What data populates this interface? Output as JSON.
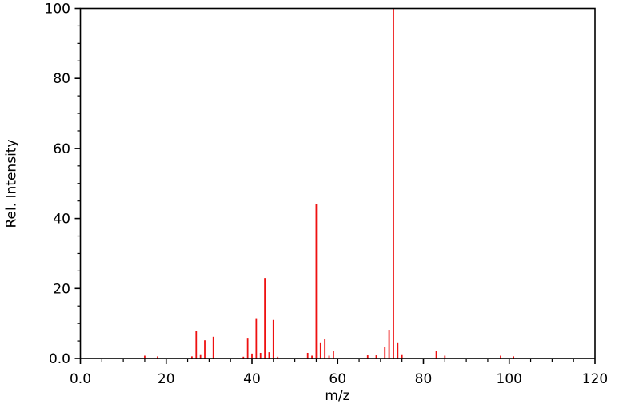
{
  "chart_data": {
    "type": "bar",
    "subtype": "mass-spectrum-stick-plot",
    "title": "",
    "xlabel": "m/z",
    "ylabel": "Rel. Intensity",
    "xlim": [
      0,
      120
    ],
    "ylim": [
      0,
      100
    ],
    "x_major_tick_values": [
      0,
      20,
      40,
      60,
      80,
      100,
      120
    ],
    "x_major_tick_labels": [
      "0.0",
      "20",
      "40",
      "60",
      "80",
      "100",
      "120"
    ],
    "y_major_tick_values": [
      0,
      20,
      40,
      60,
      80,
      100
    ],
    "y_major_tick_labels": [
      "0.0",
      "20",
      "40",
      "60",
      "80",
      "100"
    ],
    "minor_tick_step_x": 5,
    "minor_tick_step_y": 5,
    "grid": false,
    "legend": "none",
    "frame": "full-box",
    "tick_direction": "out",
    "bar_color": "#ee1111",
    "spine_color": "#000000",
    "background_color": "#ffffff",
    "peaks": [
      {
        "mz": 15,
        "intensity": 0.8
      },
      {
        "mz": 18,
        "intensity": 0.6
      },
      {
        "mz": 26,
        "intensity": 0.6
      },
      {
        "mz": 27,
        "intensity": 7.9
      },
      {
        "mz": 28,
        "intensity": 1.2
      },
      {
        "mz": 29,
        "intensity": 5.2
      },
      {
        "mz": 31,
        "intensity": 6.2
      },
      {
        "mz": 38,
        "intensity": 0.5
      },
      {
        "mz": 39,
        "intensity": 5.9
      },
      {
        "mz": 40,
        "intensity": 1.4
      },
      {
        "mz": 41,
        "intensity": 11.5
      },
      {
        "mz": 42,
        "intensity": 1.6
      },
      {
        "mz": 43,
        "intensity": 23.0
      },
      {
        "mz": 44,
        "intensity": 1.8
      },
      {
        "mz": 45,
        "intensity": 11.0
      },
      {
        "mz": 46,
        "intensity": 0.5
      },
      {
        "mz": 53,
        "intensity": 1.6
      },
      {
        "mz": 54,
        "intensity": 0.8
      },
      {
        "mz": 55,
        "intensity": 44.0
      },
      {
        "mz": 56,
        "intensity": 4.6
      },
      {
        "mz": 57,
        "intensity": 5.7
      },
      {
        "mz": 58,
        "intensity": 0.8
      },
      {
        "mz": 59,
        "intensity": 2.2
      },
      {
        "mz": 67,
        "intensity": 0.9
      },
      {
        "mz": 69,
        "intensity": 0.9
      },
      {
        "mz": 71,
        "intensity": 3.4
      },
      {
        "mz": 72,
        "intensity": 8.2
      },
      {
        "mz": 73,
        "intensity": 100.0
      },
      {
        "mz": 74,
        "intensity": 4.6
      },
      {
        "mz": 75,
        "intensity": 1.2
      },
      {
        "mz": 83,
        "intensity": 2.1
      },
      {
        "mz": 85,
        "intensity": 0.8
      },
      {
        "mz": 98,
        "intensity": 0.8
      },
      {
        "mz": 101,
        "intensity": 0.6
      }
    ]
  }
}
